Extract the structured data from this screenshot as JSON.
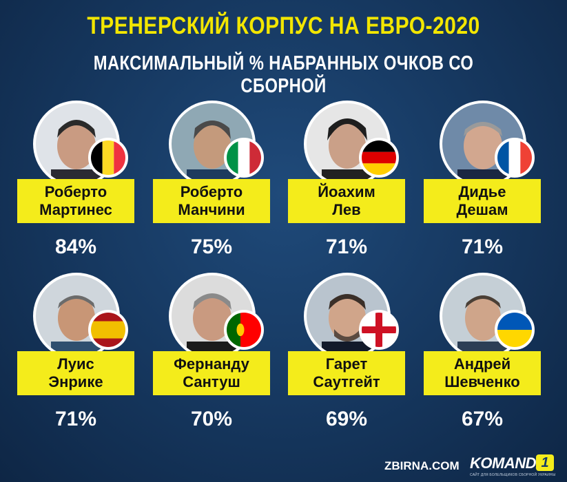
{
  "title": "ТРЕНЕРСКИЙ КОРПУС НА ЕВРО-2020",
  "subtitle": "МАКСИМАЛЬНЫЙ % НАБРАННЫХ ОЧКОВ СО СБОРНОЙ",
  "coaches": [
    {
      "first": "Роберто",
      "last": "Мартинес",
      "percent": "84%",
      "flag": "belgium-flag-icon"
    },
    {
      "first": "Роберто",
      "last": "Манчини",
      "percent": "75%",
      "flag": "italy-flag-icon"
    },
    {
      "first": "Йоахим",
      "last": "Лев",
      "percent": "71%",
      "flag": "germany-flag-icon"
    },
    {
      "first": "Дидье",
      "last": "Дешам",
      "percent": "71%",
      "flag": "france-flag-icon"
    },
    {
      "first": "Луис",
      "last": "Энрике",
      "percent": "71%",
      "flag": "spain-flag-icon"
    },
    {
      "first": "Фернанду",
      "last": "Сантуш",
      "percent": "70%",
      "flag": "portugal-flag-icon"
    },
    {
      "first": "Гарет",
      "last": "Саутгейт",
      "percent": "69%",
      "flag": "england-flag-icon"
    },
    {
      "first": "Андрей",
      "last": "Шевченко",
      "percent": "67%",
      "flag": "ukraine-flag-icon"
    }
  ],
  "footer": {
    "site": "ZBIRNA.COM",
    "logo": "KOMANDA",
    "logo_num": "1",
    "tagline": "САЙТ ДЛЯ БОЛЕЛЬЩИКОВ СБОРНОЙ УКРАИНЫ"
  },
  "colors": {
    "title": "#f2e600",
    "name_box": "#f4ec1b",
    "background": "#173a63"
  }
}
